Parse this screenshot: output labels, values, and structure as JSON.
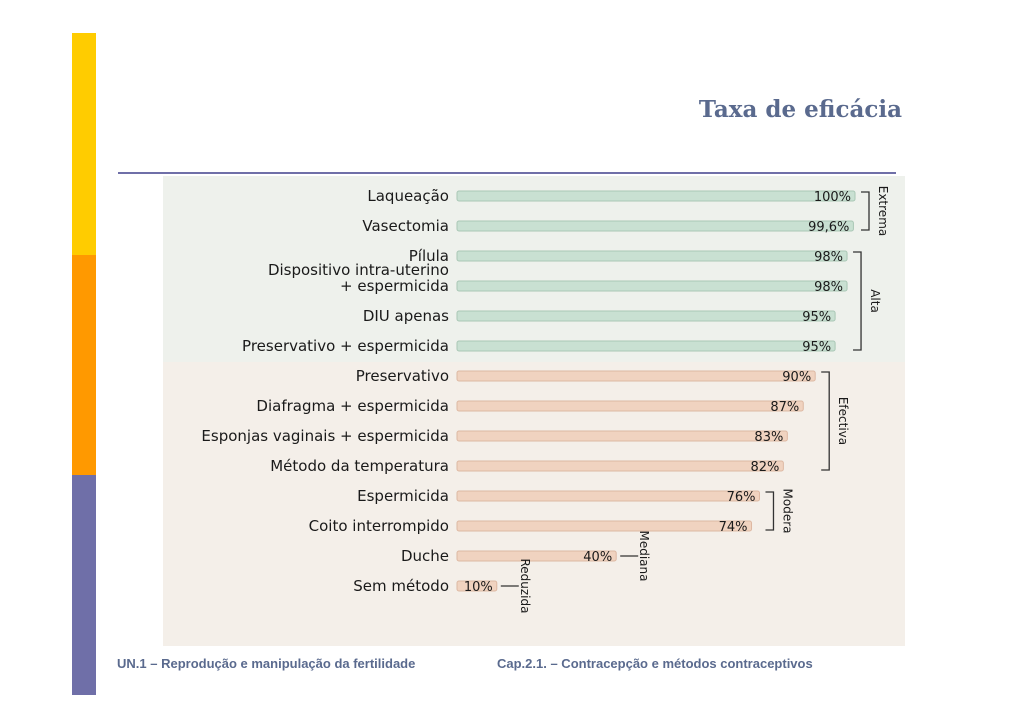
{
  "slide": {
    "title": "Taxa de eficácia",
    "footer_left": "UN.1 – Reprodução e manipulação da fertilidade",
    "footer_right": "Cap.2.1. – Contracepção e métodos contraceptivos"
  },
  "colors": {
    "sidebar_top": "#ffcc00",
    "sidebar_middle": "#ff9900",
    "sidebar_bottom": "#6f6fa8",
    "title": "#5a6a8e",
    "bar_green": "#c9e0d2",
    "bar_peach": "#f0d3c0"
  },
  "chart_data": {
    "type": "bar",
    "orientation": "horizontal",
    "xlim": [
      0,
      100
    ],
    "categories": [
      "Laqueação",
      "Vasectomia",
      "Pílula",
      "Dispositivo intra-uterino\n+ espermicida",
      "DIU apenas",
      "Preservativo + espermicida",
      "Preservativo",
      "Diafragma + espermicida",
      "Esponjas vaginais + espermicida",
      "Método da temperatura",
      "Espermicida",
      "Coito interrompido",
      "Duche",
      "Sem método"
    ],
    "values": [
      100,
      99.6,
      98,
      98,
      95,
      95,
      90,
      87,
      83,
      82,
      76,
      74,
      40,
      10
    ],
    "value_labels": [
      "100%",
      "99,6%",
      "98%",
      "98%",
      "95%",
      "95%",
      "90%",
      "87%",
      "83%",
      "82%",
      "76%",
      "74%",
      "40%",
      "10%"
    ],
    "groups": [
      {
        "label": "Extrema",
        "from": 0,
        "to": 1
      },
      {
        "label": "Alta",
        "from": 2,
        "to": 5
      },
      {
        "label": "Efectiva",
        "from": 6,
        "to": 9
      },
      {
        "label": "Modera",
        "from": 10,
        "to": 11
      },
      {
        "label": "Mediana",
        "from": 12,
        "to": 12
      },
      {
        "label": "Reduzida",
        "from": 13,
        "to": 13
      }
    ]
  }
}
